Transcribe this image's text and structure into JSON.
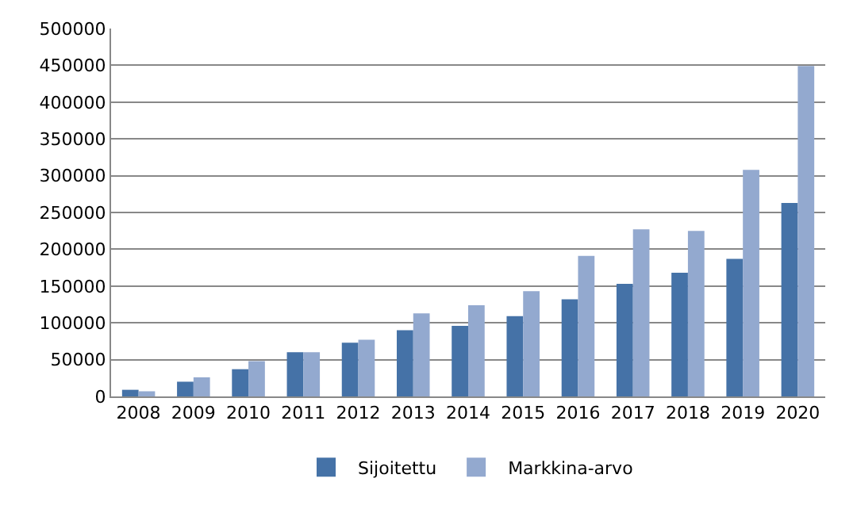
{
  "chart_data": {
    "type": "bar",
    "categories": [
      "2008",
      "2009",
      "2010",
      "2011",
      "2012",
      "2013",
      "2014",
      "2015",
      "2016",
      "2017",
      "2018",
      "2019",
      "2020"
    ],
    "series": [
      {
        "name": "Sijoitettu",
        "color": "#4572a7",
        "values": [
          9000,
          20000,
          37000,
          60000,
          73000,
          90000,
          96000,
          109000,
          132000,
          153000,
          168000,
          187000,
          263000
        ]
      },
      {
        "name": "Markkina-arvo",
        "color": "#93a9cf",
        "values": [
          7000,
          26000,
          48000,
          60000,
          77000,
          113000,
          124000,
          143000,
          191000,
          227000,
          225000,
          308000,
          449000
        ]
      }
    ],
    "ylim": [
      0,
      500000
    ],
    "yticks": [
      0,
      50000,
      100000,
      150000,
      200000,
      250000,
      300000,
      350000,
      400000,
      450000,
      500000
    ],
    "grid": "y",
    "legend": "bottom"
  }
}
